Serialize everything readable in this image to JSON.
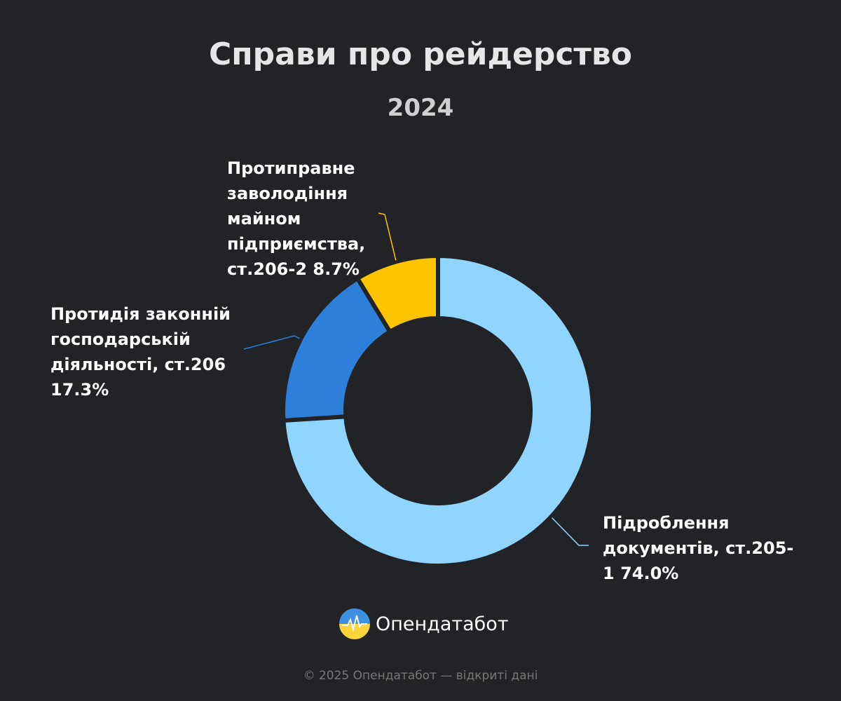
{
  "chart_data": {
    "type": "donut",
    "title": "Справи про рейдерство",
    "subtitle": "2024",
    "categories": [
      "Підроблення документів, ст.205-1",
      "Протидія законній господарській діяльності, ст.206",
      "Протиправне заволодіння майном підприємства, ст.206-2"
    ],
    "values": [
      74.0,
      17.3,
      8.7
    ],
    "value_labels": [
      "74.0%",
      "17.3%",
      "8.7%"
    ],
    "colors": [
      "#90d5ff",
      "#2e7fd9",
      "#ffc400"
    ]
  },
  "footer": {
    "brand": "Опендатабот",
    "copyright": "© 2025 Опендатабот — відкриті дані"
  }
}
